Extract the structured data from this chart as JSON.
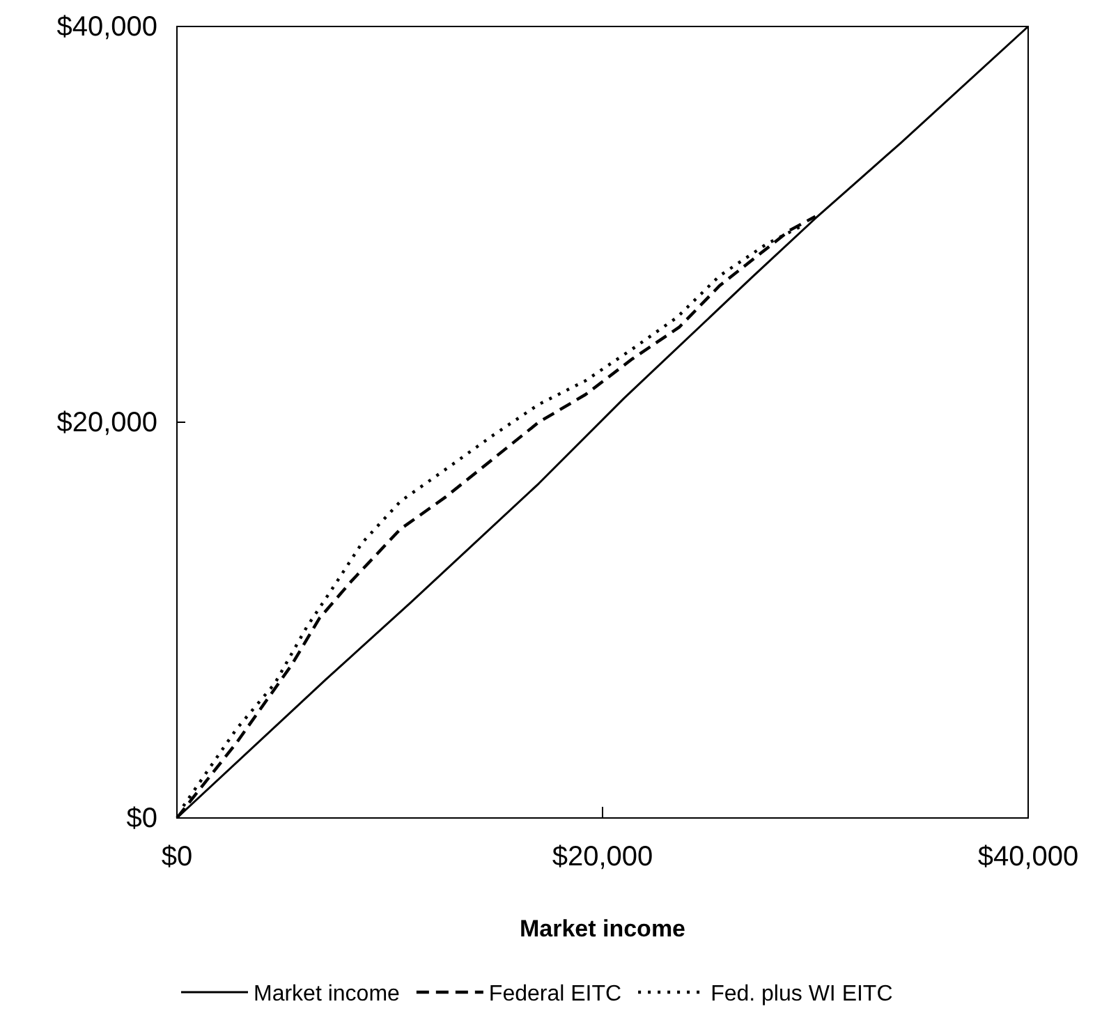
{
  "chart_data": {
    "type": "line",
    "xlabel": "Market income",
    "x": [
      0,
      7000,
      11000,
      17000,
      21000,
      27000,
      30000,
      34000,
      40000
    ],
    "xlim": [
      0,
      40000
    ],
    "ylim": [
      0,
      40000
    ],
    "xticks": [
      {
        "value": 0,
        "label": "$0"
      },
      {
        "value": 20000,
        "label": "$20,000"
      },
      {
        "value": 40000,
        "label": "$40,000"
      }
    ],
    "yticks": [
      {
        "value": 0,
        "label": "$0"
      },
      {
        "value": 20000,
        "label": "$20,000"
      },
      {
        "value": 40000,
        "label": "$40,000"
      }
    ],
    "grid": false,
    "legend": "bottom",
    "marker": "none",
    "series": [
      {
        "name": "Market income",
        "color": "#000000",
        "line_style": "solid",
        "values": [
          0,
          7000,
          10900,
          16900,
          21200,
          27300,
          30300,
          34100,
          40000
        ]
      },
      {
        "name": "Federal EITC",
        "color": "#000000",
        "line_style": "dashed",
        "x": [
          0,
          2800,
          5400,
          6700,
          8200,
          10500,
          12600,
          14800,
          17000,
          19200,
          21400,
          23600,
          25500,
          28800,
          30000
        ],
        "values": [
          0,
          3800,
          7750,
          10100,
          11970,
          14600,
          16200,
          18100,
          20000,
          21400,
          23200,
          24800,
          26900,
          29700,
          30400
        ]
      },
      {
        "name": "Fed. plus WI EITC",
        "color": "#000000",
        "line_style": "dotted",
        "x": [
          300,
          2800,
          4600,
          6100,
          7400,
          8700,
          10500,
          12600,
          14800,
          17000,
          19200,
          21400,
          23500,
          25500,
          27700,
          29500
        ],
        "values": [
          600,
          4500,
          6800,
          9650,
          11750,
          13900,
          16000,
          17600,
          19300,
          20900,
          22100,
          23700,
          25300,
          27400,
          29000,
          30000
        ]
      }
    ]
  }
}
